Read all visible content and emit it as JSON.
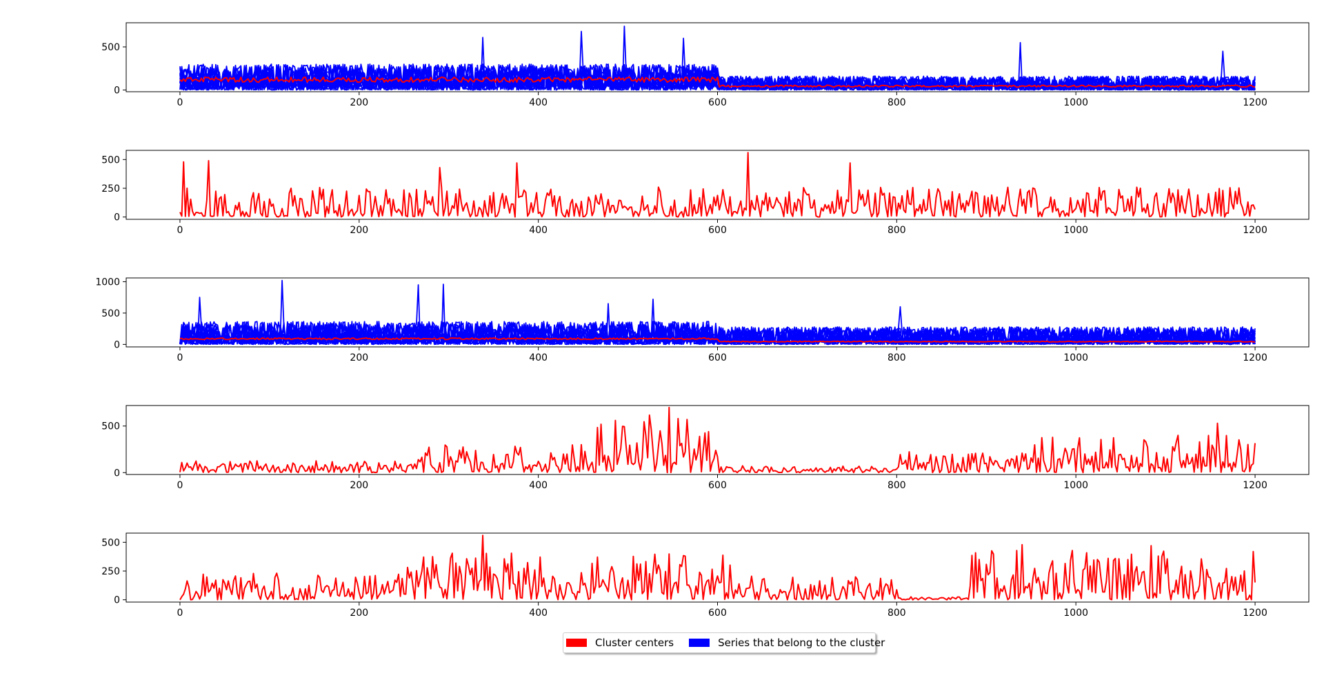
{
  "colors": {
    "center": "#ff0000",
    "member": "#0000ff",
    "axis": "#000000",
    "background": "#ffffff"
  },
  "legend": {
    "placement": "bottom-center",
    "entries": [
      {
        "label": "Cluster centers",
        "color": "#ff0000"
      },
      {
        "label": "Series that belong to the cluster",
        "color": "#0000ff"
      }
    ]
  },
  "chart_data": [
    {
      "type": "line",
      "panel": 1,
      "xlim": [
        -60,
        1260
      ],
      "ylim": [
        -20,
        780
      ],
      "xticks": [
        0,
        200,
        400,
        600,
        800,
        1000,
        1200
      ],
      "yticks": [
        0,
        500
      ],
      "series": [
        {
          "role": "member",
          "count": 12,
          "stroke": "#0000ff",
          "levels": [
            [
              0,
              600,
              140
            ],
            [
              600,
              1200,
              75
            ]
          ],
          "spread": 1.0,
          "spikes": [
            [
              338,
              610
            ],
            [
              448,
              680
            ],
            [
              495,
              740
            ],
            [
              561,
              600
            ],
            [
              937,
              550
            ],
            [
              1163,
              450
            ]
          ]
        },
        {
          "role": "center",
          "count": 1,
          "stroke": "#ff0000",
          "levels": [
            [
              0,
              600,
              120
            ],
            [
              600,
              1200,
              45
            ]
          ],
          "spread": 0.25,
          "spikes": []
        }
      ]
    },
    {
      "type": "line",
      "panel": 2,
      "xlim": [
        -60,
        1260
      ],
      "ylim": [
        -20,
        580
      ],
      "xticks": [
        0,
        200,
        400,
        600,
        800,
        1000,
        1200
      ],
      "yticks": [
        0,
        250,
        500
      ],
      "series": [
        {
          "role": "center",
          "count": 1,
          "stroke": "#ff0000",
          "levels": [
            [
              0,
              1200,
              110
            ]
          ],
          "spread": 1.1,
          "spikes": [
            [
              3,
              480
            ],
            [
              32,
              490
            ],
            [
              290,
              430
            ],
            [
              375,
              470
            ],
            [
              634,
              560
            ],
            [
              748,
              470
            ]
          ]
        }
      ]
    },
    {
      "type": "line",
      "panel": 3,
      "xlim": [
        -60,
        1260
      ],
      "ylim": [
        -40,
        1060
      ],
      "xticks": [
        0,
        200,
        400,
        600,
        800,
        1000,
        1200
      ],
      "yticks": [
        0,
        500,
        1000
      ],
      "series": [
        {
          "role": "member",
          "count": 12,
          "stroke": "#0000ff",
          "levels": [
            [
              0,
              600,
              170
            ],
            [
              600,
              1200,
              130
            ]
          ],
          "spread": 1.0,
          "spikes": [
            [
              22,
              750
            ],
            [
              114,
              1020
            ],
            [
              265,
              950
            ],
            [
              294,
              960
            ],
            [
              478,
              650
            ],
            [
              527,
              720
            ],
            [
              803,
              600
            ]
          ]
        },
        {
          "role": "center",
          "count": 1,
          "stroke": "#ff0000",
          "levels": [
            [
              0,
              600,
              90
            ],
            [
              600,
              1200,
              45
            ]
          ],
          "spread": 0.15,
          "spikes": []
        }
      ]
    },
    {
      "type": "line",
      "panel": 4,
      "xlim": [
        -60,
        1260
      ],
      "ylim": [
        -20,
        720
      ],
      "xticks": [
        0,
        200,
        400,
        600,
        800,
        1000,
        1200
      ],
      "yticks": [
        0,
        500
      ],
      "series": [
        {
          "role": "center",
          "count": 1,
          "stroke": "#ff0000",
          "levels": [
            [
              0,
              250,
              50
            ],
            [
              250,
              450,
              120
            ],
            [
              450,
              600,
              250
            ],
            [
              600,
              800,
              30
            ],
            [
              800,
              950,
              90
            ],
            [
              950,
              1200,
              160
            ]
          ],
          "spread": 1.2,
          "spikes": [
            [
              485,
              560
            ],
            [
              545,
              700
            ],
            [
              555,
              580
            ],
            [
              1158,
              530
            ]
          ]
        }
      ]
    },
    {
      "type": "line",
      "panel": 5,
      "xlim": [
        -60,
        1260
      ],
      "ylim": [
        -20,
        580
      ],
      "xticks": [
        0,
        200,
        400,
        600,
        800,
        1000,
        1200
      ],
      "yticks": [
        0,
        250,
        500
      ],
      "series": [
        {
          "role": "center",
          "count": 1,
          "stroke": "#ff0000",
          "levels": [
            [
              0,
              250,
              90
            ],
            [
              250,
              620,
              160
            ],
            [
              620,
              800,
              80
            ],
            [
              800,
              880,
              10
            ],
            [
              880,
              1150,
              170
            ],
            [
              1150,
              1200,
              120
            ]
          ],
          "spread": 1.2,
          "spikes": [
            [
              338,
              560
            ],
            [
              940,
              480
            ],
            [
              1083,
              470
            ],
            [
              1198,
              420
            ]
          ]
        }
      ]
    }
  ]
}
